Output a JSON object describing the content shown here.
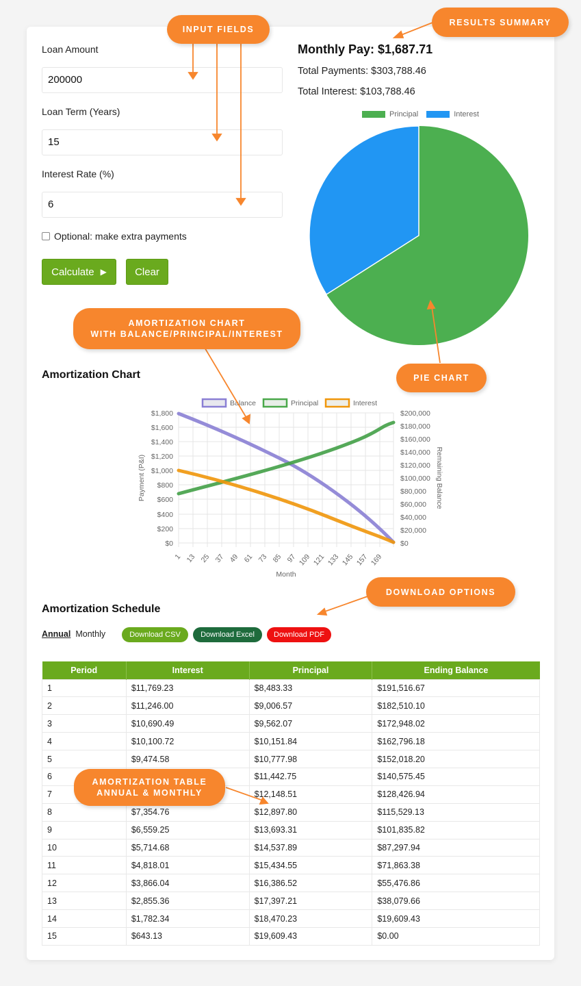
{
  "form": {
    "loan_amount": {
      "label": "Loan Amount",
      "value": "200000"
    },
    "loan_term": {
      "label": "Loan Term (Years)",
      "value": "15"
    },
    "interest_rate": {
      "label": "Interest Rate (%)",
      "value": "6"
    },
    "extra_payments": {
      "label": "Optional: make extra payments",
      "checked": false
    },
    "calculate_label": "Calculate",
    "calculate_icon": "play-icon ▶",
    "clear_label": "Clear"
  },
  "results": {
    "monthly_pay": "Monthly Pay: $1,687.71",
    "total_payments": "Total Payments: $303,788.46",
    "total_interest": "Total Interest: $103,788.46"
  },
  "amortization_chart": {
    "title": "Amortization Chart"
  },
  "schedule": {
    "title": "Amortization Schedule",
    "tabs": [
      {
        "label": "Annual",
        "active": true
      },
      {
        "label": "Monthly",
        "active": false
      }
    ],
    "downloads": [
      {
        "label": "Download CSV",
        "color": "#6aaa1e"
      },
      {
        "label": "Download Excel",
        "color": "#1e6b3c"
      },
      {
        "label": "Download PDF",
        "color": "#ee1111"
      }
    ],
    "columns": [
      "Period",
      "Interest",
      "Principal",
      "Ending Balance"
    ],
    "rows": [
      [
        "1",
        "$11,769.23",
        "$8,483.33",
        "$191,516.67"
      ],
      [
        "2",
        "$11,246.00",
        "$9,006.57",
        "$182,510.10"
      ],
      [
        "3",
        "$10,690.49",
        "$9,562.07",
        "$172,948.02"
      ],
      [
        "4",
        "$10,100.72",
        "$10,151.84",
        "$162,796.18"
      ],
      [
        "5",
        "$9,474.58",
        "$10,777.98",
        "$152,018.20"
      ],
      [
        "6",
        "",
        "$11,442.75",
        "$140,575.45"
      ],
      [
        "7",
        "",
        "$12,148.51",
        "$128,426.94"
      ],
      [
        "8",
        "$7,354.76",
        "$12,897.80",
        "$115,529.13"
      ],
      [
        "9",
        "$6,559.25",
        "$13,693.31",
        "$101,835.82"
      ],
      [
        "10",
        "$5,714.68",
        "$14,537.89",
        "$87,297.94"
      ],
      [
        "11",
        "$4,818.01",
        "$15,434.55",
        "$71,863.38"
      ],
      [
        "12",
        "$3,866.04",
        "$16,386.52",
        "$55,476.86"
      ],
      [
        "13",
        "$2,855.36",
        "$17,397.21",
        "$38,079.66"
      ],
      [
        "14",
        "$1,782.34",
        "$18,470.23",
        "$19,609.43"
      ],
      [
        "15",
        "$643.13",
        "$19,609.43",
        "$0.00"
      ]
    ]
  },
  "callouts": {
    "input_fields": "INPUT FIELDS",
    "results_summary": "RESULTS SUMMARY",
    "amort_chart_line1": "AMORTIZATION CHART",
    "amort_chart_line2": "WITH BALANCE/PRINCIPAL/INTEREST",
    "pie_chart": "PIE CHART",
    "download_options": "DOWNLOAD OPTIONS",
    "amort_table_line1": "AMORTIZATION TABLE",
    "amort_table_line2": "ANNUAL & MONTHLY"
  },
  "colors": {
    "accent_green": "#6aaa1e",
    "callout_orange": "#f7862d",
    "principal": "#4caf50",
    "interest_pie": "#2196f3",
    "balance_line": "#8a7fd4",
    "interest_line": "#f0960a"
  },
  "chart_data": [
    {
      "type": "pie",
      "title": "",
      "legend": [
        "Principal",
        "Interest"
      ],
      "categories": [
        "Principal",
        "Interest"
      ],
      "values": [
        200000,
        103788.46
      ],
      "colors": [
        "#4caf50",
        "#2196f3"
      ],
      "legend_position": "top"
    },
    {
      "type": "line",
      "title": "Amortization Chart",
      "legend": [
        "Balance",
        "Principal",
        "Interest"
      ],
      "legend_position": "top",
      "xlabel": "Month",
      "ylabel": "Payment (P&I)",
      "y2label": "Remaining Balance",
      "x_ticks": [
        "1",
        "13",
        "25",
        "37",
        "49",
        "61",
        "73",
        "85",
        "97",
        "109",
        "121",
        "133",
        "145",
        "157",
        "169"
      ],
      "y_ticks": [
        "$0",
        "$200",
        "$400",
        "$600",
        "$800",
        "$1,000",
        "$1,200",
        "$1,400",
        "$1,600",
        "$1,800"
      ],
      "y2_ticks": [
        "$0",
        "$20,000",
        "$40,000",
        "$60,000",
        "$80,000",
        "$100,000",
        "$120,000",
        "$140,000",
        "$160,000",
        "$180,000",
        "$200,000"
      ],
      "ylim": [
        0,
        1800
      ],
      "y2lim": [
        0,
        200000
      ],
      "grid": true,
      "x": [
        1,
        13,
        25,
        37,
        49,
        61,
        73,
        85,
        97,
        109,
        121,
        133,
        145,
        157,
        169,
        180
      ],
      "series": [
        {
          "name": "Balance",
          "axis": "right",
          "values": [
            199312,
            191517,
            182510,
            172948,
            162796,
            152018,
            140575,
            128427,
            115529,
            101836,
            87298,
            71863,
            55477,
            38080,
            19609,
            0
          ]
        },
        {
          "name": "Principal",
          "axis": "left",
          "values": [
            688,
            730,
            775,
            823,
            874,
            928,
            985,
            1046,
            1110,
            1179,
            1251,
            1329,
            1411,
            1498,
            1590,
            1679
          ]
        },
        {
          "name": "Interest",
          "axis": "left",
          "values": [
            1000,
            958,
            913,
            865,
            814,
            760,
            703,
            642,
            578,
            509,
            437,
            359,
            277,
            190,
            98,
            8
          ]
        }
      ]
    }
  ]
}
